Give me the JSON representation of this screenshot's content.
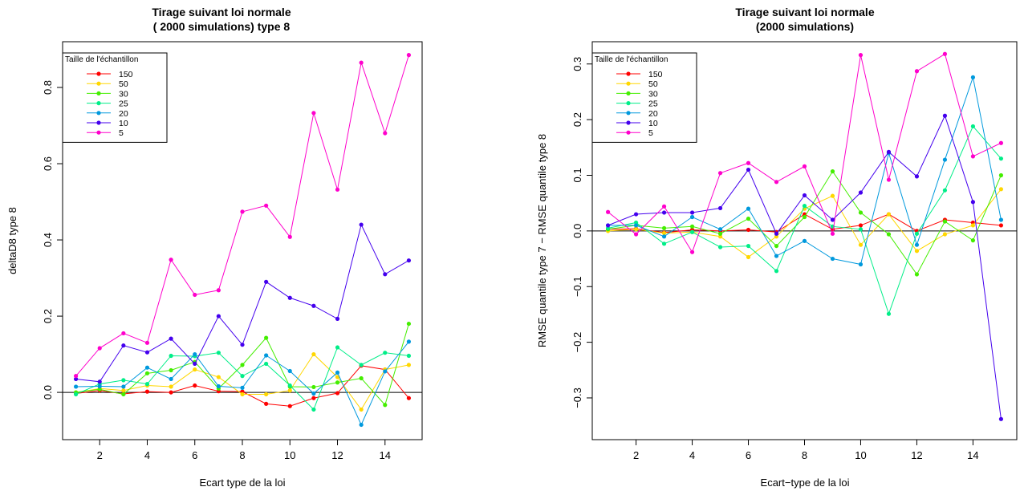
{
  "chart_data": [
    {
      "type": "line",
      "title_line1": "Tirage suivant loi normale",
      "title_line2": "( 2000  simulations) type 8",
      "xlabel": "Ecart type de la loi",
      "ylabel": "deltaD8 type 8",
      "xlim": [
        0.44,
        15.56
      ],
      "ylim": [
        -0.124,
        0.92
      ],
      "xticks": [
        2,
        4,
        6,
        8,
        10,
        12,
        14
      ],
      "yticks": [
        0.0,
        0.2,
        0.4,
        0.6,
        0.8
      ],
      "reference_line_y": 0,
      "legend": {
        "title": "Taille de l'échantillon",
        "position": "top-left"
      },
      "x": [
        1,
        2,
        3,
        4,
        5,
        6,
        7,
        8,
        9,
        10,
        11,
        12,
        13,
        14,
        15
      ],
      "series": [
        {
          "name": "150",
          "color": "#ff0000",
          "values": [
            -0.003,
            0.005,
            -0.004,
            0.002,
            0.0,
            0.018,
            0.003,
            0.002,
            -0.03,
            -0.036,
            -0.015,
            -0.002,
            0.07,
            0.06,
            -0.015
          ]
        },
        {
          "name": "50",
          "color": "#ffd700",
          "values": [
            0.0,
            0.01,
            0.005,
            0.018,
            0.015,
            0.06,
            0.04,
            -0.005,
            -0.005,
            0.005,
            0.1,
            0.04,
            -0.045,
            0.06,
            0.072
          ]
        },
        {
          "name": "30",
          "color": "#44ee00",
          "values": [
            0.0,
            0.008,
            -0.005,
            0.05,
            0.058,
            0.08,
            0.01,
            0.072,
            0.143,
            0.015,
            0.014,
            0.026,
            0.037,
            -0.033,
            0.18
          ]
        },
        {
          "name": "25",
          "color": "#00ee88",
          "values": [
            -0.005,
            0.022,
            0.032,
            0.022,
            0.096,
            0.095,
            0.104,
            0.043,
            0.075,
            0.018,
            -0.045,
            0.118,
            0.072,
            0.104,
            0.096
          ]
        },
        {
          "name": "20",
          "color": "#0099dd",
          "values": [
            0.015,
            0.016,
            0.015,
            0.065,
            0.035,
            0.1,
            0.016,
            0.012,
            0.097,
            0.056,
            -0.003,
            0.052,
            -0.085,
            0.055,
            0.133
          ]
        },
        {
          "name": "10",
          "color": "#4400ee",
          "values": [
            0.035,
            0.028,
            0.123,
            0.105,
            0.141,
            0.075,
            0.2,
            0.125,
            0.29,
            0.248,
            0.227,
            0.193,
            0.44,
            0.31,
            0.346
          ]
        },
        {
          "name": "5",
          "color": "#ff00cc",
          "values": [
            0.043,
            0.116,
            0.155,
            0.13,
            0.348,
            0.256,
            0.268,
            0.474,
            0.49,
            0.408,
            0.733,
            0.532,
            0.865,
            0.68,
            0.885
          ]
        }
      ]
    },
    {
      "type": "line",
      "title_line1": "Tirage suivant loi normale",
      "title_line2": "(2000 simulations)",
      "xlabel": "Ecart−type de la loi",
      "ylabel": "RMSE quantile type 7 − RMSE quantile type 8",
      "xlim": [
        0.44,
        15.56
      ],
      "ylim": [
        -0.375,
        0.34
      ],
      "xticks": [
        2,
        4,
        6,
        8,
        10,
        12,
        14
      ],
      "yticks": [
        -0.3,
        -0.2,
        -0.1,
        0.0,
        0.1,
        0.2,
        0.3
      ],
      "reference_line_y": 0,
      "legend": {
        "title": "Taille de l'échantillon",
        "position": "top-left"
      },
      "x": [
        1,
        2,
        3,
        4,
        5,
        6,
        7,
        8,
        9,
        10,
        11,
        12,
        13,
        14,
        15
      ],
      "series": [
        {
          "name": "150",
          "color": "#ff0000",
          "values": [
            0.003,
            0.004,
            -0.003,
            0.002,
            0.0,
            0.002,
            -0.002,
            0.03,
            0.003,
            0.01,
            0.03,
            0.0,
            0.02,
            0.015,
            0.01
          ]
        },
        {
          "name": "50",
          "color": "#ffd700",
          "values": [
            0.0,
            0.003,
            -0.004,
            -0.002,
            -0.01,
            -0.047,
            -0.01,
            0.04,
            0.063,
            -0.025,
            0.03,
            -0.036,
            -0.006,
            0.01,
            0.075
          ]
        },
        {
          "name": "30",
          "color": "#44ee00",
          "values": [
            0.003,
            0.01,
            0.005,
            0.008,
            -0.005,
            0.022,
            -0.027,
            0.025,
            0.107,
            0.033,
            -0.006,
            -0.078,
            0.017,
            -0.017,
            0.1
          ]
        },
        {
          "name": "25",
          "color": "#00ee88",
          "values": [
            0.005,
            0.015,
            -0.023,
            -0.002,
            -0.029,
            -0.027,
            -0.072,
            0.045,
            0.008,
            0.003,
            -0.149,
            -0.005,
            0.073,
            0.188,
            0.13
          ]
        },
        {
          "name": "20",
          "color": "#0099dd",
          "values": [
            0.01,
            0.01,
            -0.01,
            0.025,
            0.003,
            0.04,
            -0.045,
            -0.018,
            -0.05,
            -0.06,
            0.14,
            -0.025,
            0.128,
            0.276,
            0.02
          ]
        },
        {
          "name": "10",
          "color": "#4400ee",
          "values": [
            0.01,
            0.03,
            0.033,
            0.033,
            0.041,
            0.11,
            -0.005,
            0.064,
            0.02,
            0.069,
            0.142,
            0.098,
            0.207,
            0.052,
            -0.338
          ]
        },
        {
          "name": "5",
          "color": "#ff00cc",
          "values": [
            0.034,
            -0.006,
            0.044,
            -0.038,
            0.104,
            0.122,
            0.088,
            0.116,
            -0.005,
            0.316,
            0.092,
            0.287,
            0.318,
            0.134,
            0.158
          ]
        }
      ]
    }
  ]
}
